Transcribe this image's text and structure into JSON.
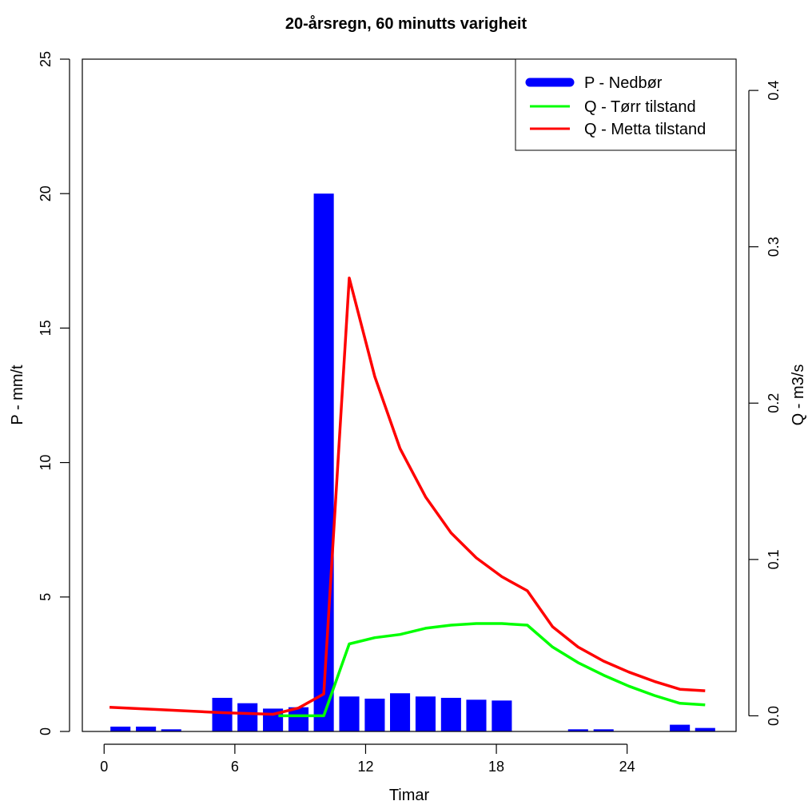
{
  "chart_data": {
    "type": "bar+line",
    "title": "20-årsregn, 60 minutts varigheit",
    "xlabel": "Timar",
    "ylabel_left": "P - mm/t",
    "ylabel_right": "Q - m3/s",
    "xlim": [
      -1,
      29
    ],
    "ylim_left": [
      0,
      25
    ],
    "ylim_right": [
      -0.01,
      0.42
    ],
    "x_ticks": [
      0,
      6,
      12,
      18,
      24
    ],
    "y_ticks_left": [
      0,
      5,
      10,
      15,
      20,
      25
    ],
    "y_ticks_right": [
      0.0,
      0.1,
      0.2,
      0.3,
      0.4
    ],
    "y_tick_labels_right": [
      "0.0",
      "0.1",
      "0.2",
      "0.3",
      "0.4"
    ],
    "legend_position": "top-right",
    "bars": {
      "name": "P - Nedbør",
      "color": "#0000ff",
      "x": [
        0.75,
        1.92,
        3.08,
        4.25,
        5.42,
        6.58,
        7.75,
        8.92,
        10.08,
        11.25,
        12.42,
        13.58,
        14.75,
        15.92,
        17.08,
        18.25,
        19.42,
        20.58,
        21.75,
        22.92,
        24.08,
        25.25,
        26.42,
        27.58
      ],
      "values": [
        0.18,
        0.18,
        0.08,
        0,
        1.25,
        1.05,
        0.85,
        0.9,
        20.0,
        1.3,
        1.22,
        1.42,
        1.3,
        1.25,
        1.18,
        1.15,
        0,
        0,
        0.08,
        0.08,
        0,
        0,
        0.25,
        0.13
      ]
    },
    "series": [
      {
        "name": "Q - Tørr tilstand",
        "color": "#00ff00",
        "axis": "right",
        "x": [
          8,
          8.92,
          10.08,
          11.25,
          12.42,
          13.58,
          14.75,
          15.92,
          17.08,
          18.25,
          19.42,
          20.58,
          21.75,
          22.92,
          24.08,
          25.25,
          26.42,
          27.58
        ],
        "values": [
          0.0,
          0.0,
          0.0,
          0.046,
          0.05,
          0.052,
          0.056,
          0.058,
          0.059,
          0.059,
          0.058,
          0.044,
          0.034,
          0.026,
          0.019,
          0.013,
          0.008,
          0.007
        ]
      },
      {
        "name": "Q - Metta tilstand",
        "color": "#ff0000",
        "axis": "right",
        "x": [
          0.25,
          2.5,
          5.42,
          7.75,
          8.92,
          10.08,
          11.25,
          12.42,
          13.58,
          14.75,
          15.92,
          17.08,
          18.25,
          19.42,
          20.58,
          21.75,
          22.92,
          24.08,
          25.25,
          26.42,
          27.58
        ],
        "values": [
          0.0055,
          0.004,
          0.002,
          0.001,
          0.005,
          0.014,
          0.28,
          0.217,
          0.171,
          0.14,
          0.117,
          0.101,
          0.089,
          0.08,
          0.057,
          0.044,
          0.035,
          0.028,
          0.022,
          0.017,
          0.016
        ]
      }
    ]
  }
}
